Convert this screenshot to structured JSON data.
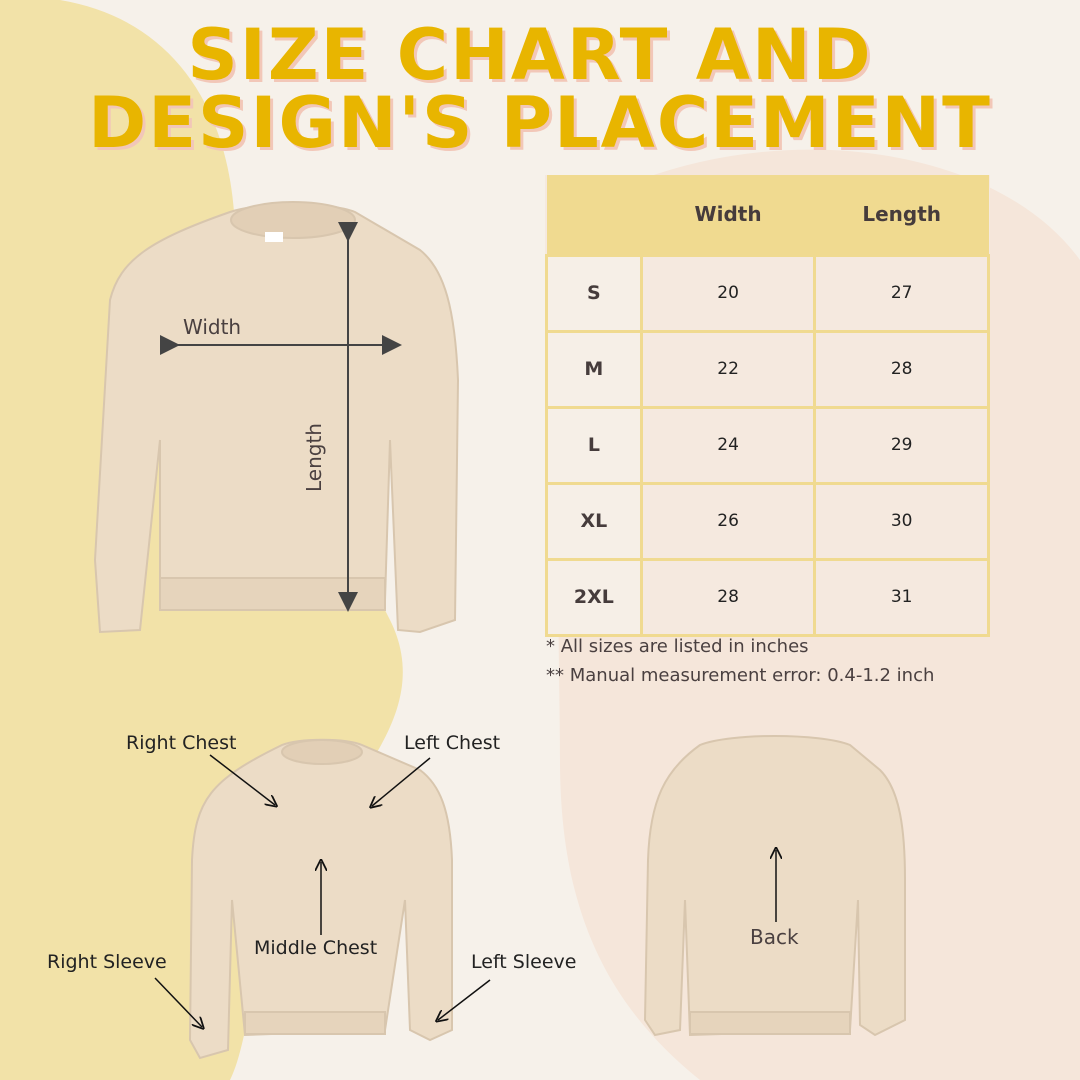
{
  "title": {
    "line1": "SIZE CHART AND",
    "line2": "DESIGN'S PLACEMENT"
  },
  "colors": {
    "title": "#e8b500",
    "title_shadow": "#f2c7b8",
    "header_bg": "#f0da90",
    "background": "#f6f1ea",
    "left_blob": "#f2e2a8",
    "right_blob": "#f5e6da",
    "garment": "#ecdcc6"
  },
  "table": {
    "headers": [
      "",
      "Width",
      "Length"
    ],
    "rows": [
      {
        "size": "S",
        "width": "20",
        "length": "27"
      },
      {
        "size": "M",
        "width": "22",
        "length": "28"
      },
      {
        "size": "L",
        "width": "24",
        "length": "29"
      },
      {
        "size": "XL",
        "width": "26",
        "length": "30"
      },
      {
        "size": "2XL",
        "width": "28",
        "length": "31"
      }
    ]
  },
  "notes": [
    "* All sizes are listed in inches",
    "** Manual measurement error: 0.4-1.2 inch"
  ],
  "measure": {
    "width": "Width",
    "length": "Length"
  },
  "placement": {
    "right_chest": "Right Chest",
    "left_chest": "Left Chest",
    "middle_chest": "Middle Chest",
    "right_sleeve": "Right Sleeve",
    "left_sleeve": "Left Sleeve",
    "back": "Back"
  }
}
